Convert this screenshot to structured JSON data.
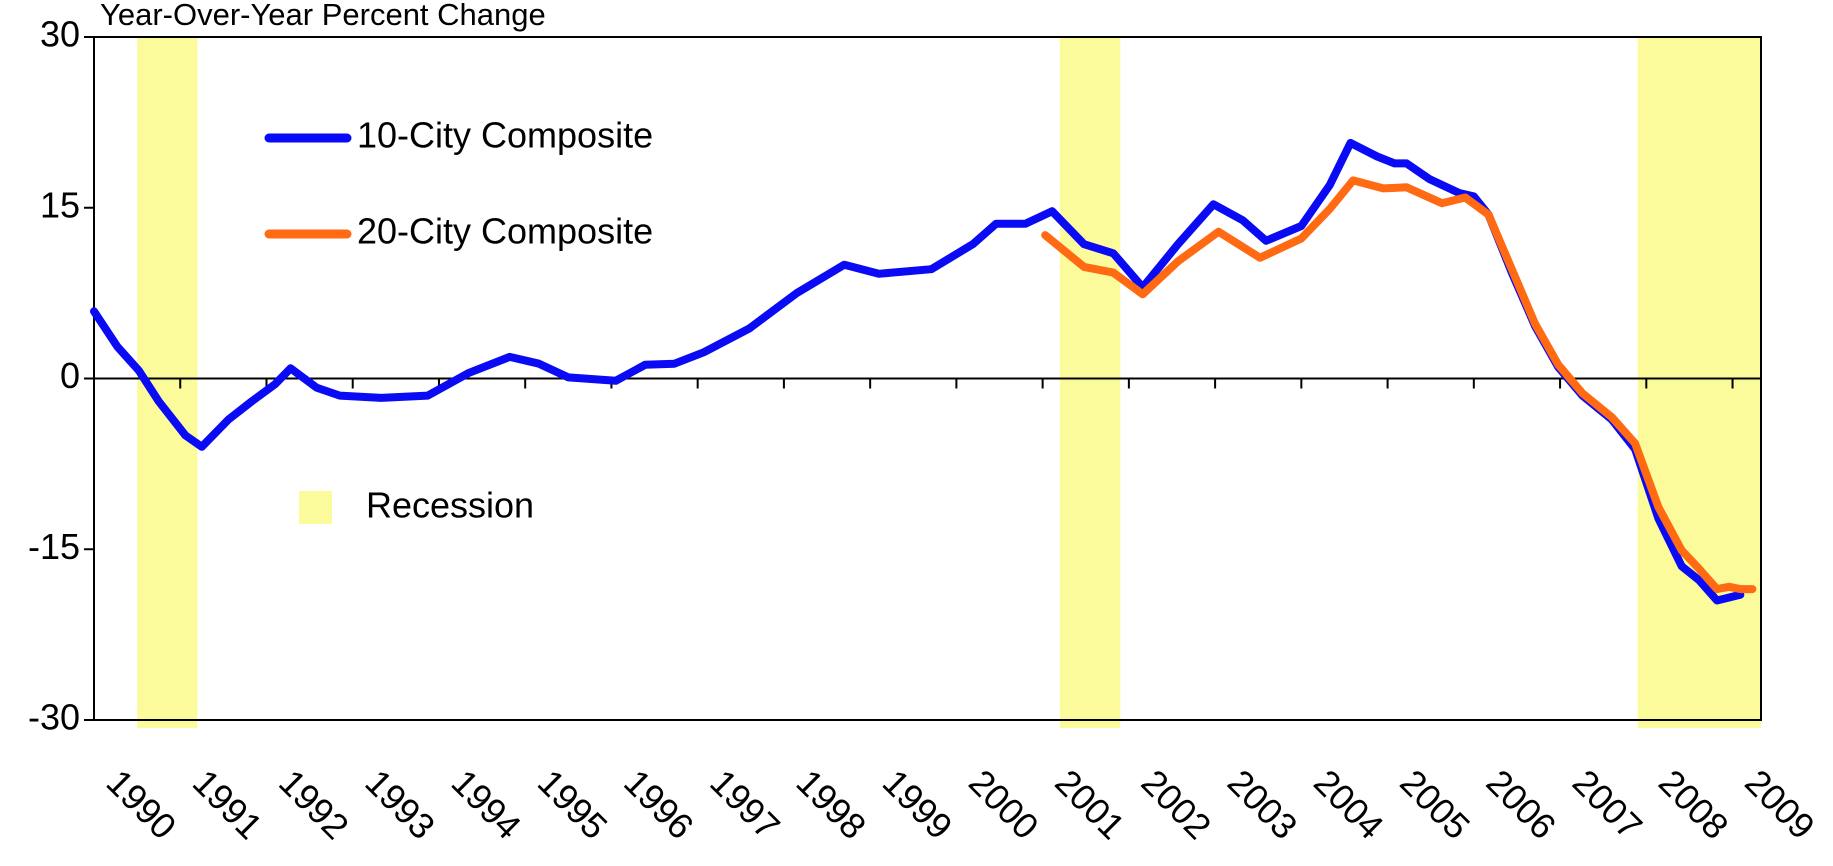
{
  "chart_data": {
    "type": "line",
    "title": "Year-Over-Year Percent Change",
    "xlim": [
      1990,
      2009.33
    ],
    "xticks": [
      1990,
      1991,
      1992,
      1993,
      1994,
      1995,
      1996,
      1997,
      1998,
      1999,
      2000,
      2001,
      2002,
      2003,
      2004,
      2005,
      2006,
      2007,
      2008,
      2009
    ],
    "ylim": [
      -30,
      30
    ],
    "yticks": [
      -30,
      -15,
      0,
      15,
      30
    ],
    "recession_label": "Recession",
    "recession_color": "#fbfb9c",
    "recessions": [
      [
        1990.5,
        1991.2
      ],
      [
        2001.2,
        2001.9
      ],
      [
        2007.9,
        2009.33
      ]
    ],
    "series": [
      {
        "name": "10-City Composite",
        "color": "#0a0af5",
        "x": [
          1990.0,
          1990.27,
          1990.52,
          1990.75,
          1991.06,
          1991.25,
          1991.56,
          1991.83,
          1992.1,
          1992.28,
          1992.58,
          1992.85,
          1993.33,
          1993.87,
          1994.35,
          1994.82,
          1995.16,
          1995.5,
          1996.05,
          1996.39,
          1996.73,
          1997.07,
          1997.6,
          1998.15,
          1998.7,
          1999.1,
          1999.71,
          2000.19,
          2000.46,
          2000.8,
          2001.11,
          2001.48,
          2001.82,
          2002.16,
          2002.57,
          2002.98,
          2003.32,
          2003.59,
          2004.0,
          2004.33,
          2004.57,
          2004.88,
          2005.08,
          2005.22,
          2005.49,
          2005.83,
          2006.0,
          2006.17,
          2006.44,
          2006.71,
          2006.98,
          2007.26,
          2007.6,
          2007.87,
          2008.14,
          2008.41,
          2008.61,
          2008.82,
          2009.09
        ],
        "values": [
          5.9,
          2.8,
          0.7,
          -2,
          -5,
          -6,
          -3.6,
          -2,
          -0.5,
          0.9,
          -0.8,
          -1.5,
          -1.7,
          -1.5,
          0.5,
          1.9,
          1.3,
          0.1,
          -0.2,
          1.2,
          1.3,
          2.3,
          4.4,
          7.5,
          10,
          9.2,
          9.6,
          11.8,
          13.6,
          13.6,
          14.7,
          11.8,
          11,
          8,
          11.8,
          15.3,
          13.9,
          12.1,
          13.4,
          17,
          20.7,
          19.5,
          18.9,
          18.9,
          17.5,
          16.3,
          16,
          14.4,
          9.3,
          4.6,
          1,
          -1.5,
          -3.6,
          -6.2,
          -12.3,
          -16.5,
          -17.7,
          -19.5,
          -19
        ]
      },
      {
        "name": "20-City Composite",
        "color": "#ff6a13",
        "x": [
          2001.03,
          2001.48,
          2001.82,
          2002.16,
          2002.57,
          2003.04,
          2003.52,
          2004.0,
          2004.33,
          2004.6,
          2004.95,
          2005.22,
          2005.63,
          2005.9,
          2006.17,
          2006.44,
          2006.71,
          2006.98,
          2007.26,
          2007.6,
          2007.87,
          2008.14,
          2008.41,
          2008.61,
          2008.82,
          2008.96,
          2009.09,
          2009.23
        ],
        "values": [
          12.6,
          9.8,
          9.3,
          7.4,
          10.3,
          12.9,
          10.6,
          12.3,
          14.9,
          17.4,
          16.7,
          16.8,
          15.4,
          15.9,
          14.4,
          9.6,
          4.8,
          1.2,
          -1.3,
          -3.4,
          -5.7,
          -11.3,
          -15.1,
          -16.7,
          -18.5,
          -18.3,
          -18.5,
          -18.5
        ]
      }
    ]
  }
}
